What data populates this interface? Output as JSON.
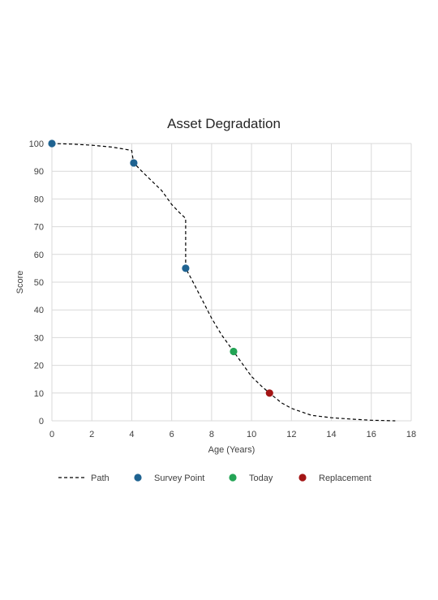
{
  "chart_data": {
    "type": "scatter",
    "title": "Asset Degradation",
    "xlabel": "Age (Years)",
    "ylabel": "Score",
    "xlim": [
      0,
      18
    ],
    "ylim": [
      0,
      100
    ],
    "x_ticks": [
      0,
      2,
      4,
      6,
      8,
      10,
      12,
      14,
      16,
      18
    ],
    "y_ticks": [
      0,
      10,
      20,
      30,
      40,
      50,
      60,
      70,
      80,
      90,
      100
    ],
    "grid": true,
    "legend_position": "bottom",
    "series": [
      {
        "name": "Path",
        "kind": "line",
        "style": "dashed",
        "color": "#000000",
        "x": [
          0,
          1,
          2,
          3,
          3.6,
          4.0,
          4.05,
          4.1,
          4.5,
          5.0,
          5.5,
          6.0,
          6.4,
          6.7,
          6.7,
          7.0,
          7.5,
          8.0,
          8.5,
          9.1,
          9.5,
          10.0,
          10.5,
          10.9,
          11.5,
          12.0,
          13.0,
          14.0,
          15.0,
          16.0,
          17.2
        ],
        "y": [
          100,
          99.8,
          99.4,
          98.7,
          98,
          97.5,
          95,
          93,
          90,
          86.5,
          83,
          78,
          75,
          73,
          55,
          51,
          44,
          37,
          31,
          25,
          21,
          16,
          12.5,
          10,
          6.5,
          4.5,
          2,
          1.1,
          0.6,
          0.2,
          0
        ]
      },
      {
        "name": "Survey Point",
        "kind": "marker",
        "color": "#1f6391",
        "x": [
          0,
          4.1,
          6.7
        ],
        "y": [
          100,
          93,
          55
        ]
      },
      {
        "name": "Today",
        "kind": "marker",
        "color": "#23a455",
        "x": [
          9.1
        ],
        "y": [
          25
        ]
      },
      {
        "name": "Replacement",
        "kind": "marker",
        "color": "#a31515",
        "x": [
          10.9
        ],
        "y": [
          10
        ]
      }
    ]
  }
}
